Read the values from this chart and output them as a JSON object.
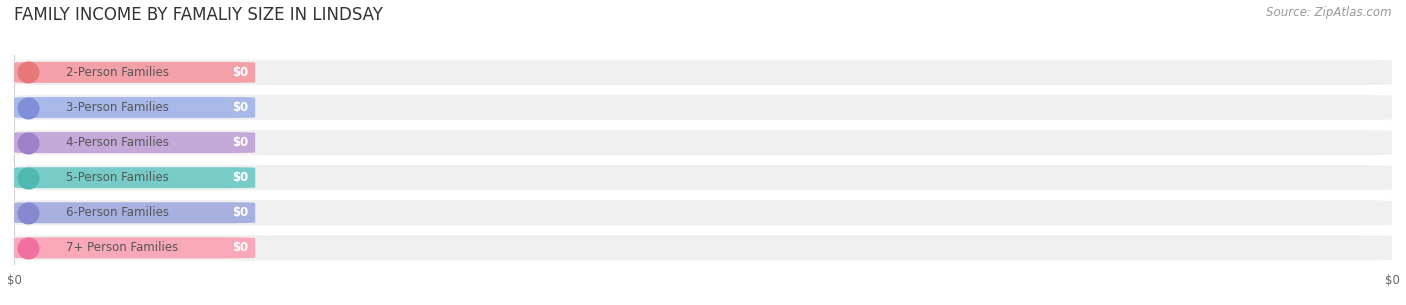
{
  "title": "FAMILY INCOME BY FAMALIY SIZE IN LINDSAY",
  "source": "Source: ZipAtlas.com",
  "categories": [
    "2-Person Families",
    "3-Person Families",
    "4-Person Families",
    "5-Person Families",
    "6-Person Families",
    "7+ Person Families"
  ],
  "values": [
    0,
    0,
    0,
    0,
    0,
    0
  ],
  "bar_colors": [
    "#f4a0a8",
    "#a8b8e8",
    "#c4a8d8",
    "#78ccc8",
    "#a8b0e0",
    "#f8a8b8"
  ],
  "dot_colors": [
    "#e87878",
    "#8090d8",
    "#a080c8",
    "#50b8b0",
    "#8888d0",
    "#f070a0"
  ],
  "bg_track_color": "#f0f0f0",
  "label_color": "#555555",
  "value_label_color": "#ffffff",
  "title_color": "#333333",
  "source_color": "#999999",
  "background_color": "#ffffff",
  "title_fontsize": 12,
  "label_fontsize": 8.5,
  "source_fontsize": 8.5,
  "tick_fontsize": 8.5,
  "xtick_labels": [
    "$0",
    "$0"
  ],
  "xtick_positions": [
    0.0,
    1.0
  ]
}
